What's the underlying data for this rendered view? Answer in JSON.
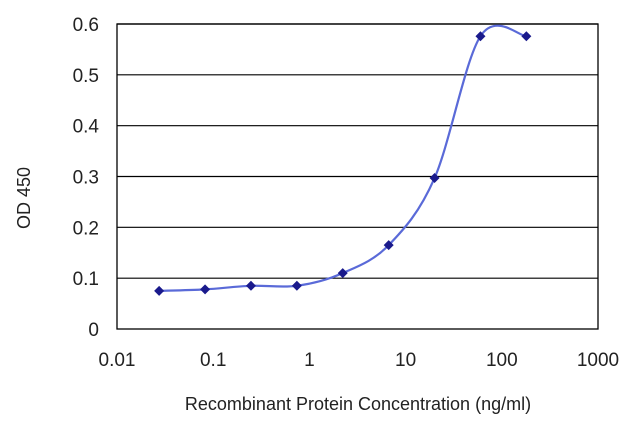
{
  "chart_data": {
    "type": "line",
    "title": "",
    "xlabel": "Recombinant Protein Concentration (ng/ml)",
    "ylabel": "OD 450",
    "x_scale": "log",
    "xlim": [
      0.01,
      1000
    ],
    "ylim": [
      0,
      0.6
    ],
    "x_ticks": [
      0.01,
      0.1,
      1,
      10,
      100,
      1000
    ],
    "x_tick_labels": [
      "0.01",
      "0.1",
      "1",
      "10",
      "100",
      "1000"
    ],
    "y_ticks": [
      0,
      0.1,
      0.2,
      0.3,
      0.4,
      0.5,
      0.6
    ],
    "y_tick_labels": [
      "0",
      "0.1",
      "0.2",
      "0.3",
      "0.4",
      "0.5",
      "0.6"
    ],
    "grid": "horizontal",
    "legend": "none",
    "colors": {
      "series": "#1a1a8c",
      "line": "#5a6ad8",
      "grid": "#000000"
    },
    "series": [
      {
        "x": [
          0.0274,
          0.0823,
          0.247,
          0.741,
          2.22,
          6.67,
          20,
          60,
          180
        ],
        "x_display": [
          0.027,
          0.082,
          0.25,
          0.74,
          2.2,
          6.7,
          20,
          60,
          180
        ],
        "values": [
          0.075,
          0.078,
          0.085,
          0.085,
          0.11,
          0.165,
          0.297,
          0.576,
          0.576
        ]
      }
    ]
  }
}
